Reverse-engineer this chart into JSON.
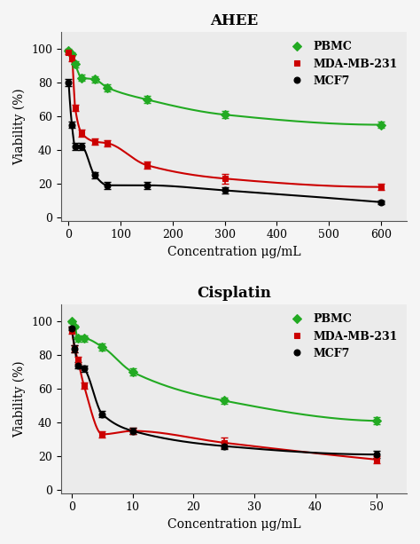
{
  "ahee": {
    "title": "AHEE",
    "xlabel": "Concentration μg/mL",
    "ylabel": "Viability (%)",
    "xlim": [
      -15,
      650
    ],
    "ylim": [
      -2,
      110
    ],
    "xticks": [
      0,
      100,
      200,
      300,
      400,
      500,
      600
    ],
    "yticks": [
      0,
      20,
      40,
      60,
      80,
      100
    ],
    "pbmc": {
      "x": [
        0,
        6.25,
        12.5,
        25,
        50,
        75,
        150,
        300,
        600
      ],
      "y": [
        99,
        97,
        91,
        83,
        82,
        77,
        70,
        61,
        55
      ],
      "yerr": [
        1,
        1,
        2,
        2,
        2,
        2,
        2,
        2,
        2
      ],
      "color": "#22aa22",
      "marker": "D",
      "label": "PBMC"
    },
    "mda": {
      "x": [
        0,
        6.25,
        12.5,
        25,
        50,
        75,
        150,
        300,
        600
      ],
      "y": [
        98,
        95,
        65,
        50,
        45,
        44,
        31,
        23,
        18
      ],
      "yerr": [
        1,
        2,
        2,
        2,
        2,
        2,
        2,
        3,
        2
      ],
      "color": "#cc0000",
      "marker": "s",
      "label": "MDA-MB-231"
    },
    "mcf7": {
      "x": [
        0,
        6.25,
        12.5,
        25,
        50,
        75,
        150,
        300,
        600
      ],
      "y": [
        80,
        55,
        42,
        42,
        25,
        19,
        19,
        16,
        9
      ],
      "yerr": [
        2,
        2,
        2,
        2,
        2,
        2,
        2,
        2,
        1
      ],
      "color": "#000000",
      "marker": "o",
      "label": "MCF7"
    }
  },
  "cisplatin": {
    "title": "Cisplatin",
    "xlabel": "Concentration μg/mL",
    "ylabel": "Viability (%)",
    "xlim": [
      -1.8,
      55
    ],
    "ylim": [
      -2,
      110
    ],
    "xticks": [
      0,
      10,
      20,
      30,
      40,
      50
    ],
    "yticks": [
      0,
      20,
      40,
      60,
      80,
      100
    ],
    "pbmc": {
      "x": [
        0,
        0.5,
        1,
        2,
        5,
        10,
        25,
        50
      ],
      "y": [
        100,
        97,
        90,
        90,
        85,
        70,
        53,
        41
      ],
      "yerr": [
        1,
        1,
        2,
        2,
        2,
        2,
        2,
        2
      ],
      "color": "#22aa22",
      "marker": "D",
      "label": "PBMC"
    },
    "mda": {
      "x": [
        0,
        0.5,
        1,
        2,
        5,
        10,
        25,
        50
      ],
      "y": [
        95,
        84,
        77,
        62,
        33,
        35,
        28,
        18
      ],
      "yerr": [
        2,
        2,
        2,
        2,
        2,
        2,
        3,
        2
      ],
      "color": "#cc0000",
      "marker": "s",
      "label": "MDA-MB-231"
    },
    "mcf7": {
      "x": [
        0,
        0.5,
        1,
        2,
        5,
        10,
        25,
        50
      ],
      "y": [
        96,
        84,
        74,
        72,
        45,
        35,
        26,
        21
      ],
      "yerr": [
        1,
        2,
        2,
        2,
        2,
        2,
        2,
        2
      ],
      "color": "#000000",
      "marker": "o",
      "label": "MCF7"
    }
  },
  "legend_fontsize": 9,
  "axis_fontsize": 10,
  "title_fontsize": 12,
  "tick_fontsize": 9,
  "linewidth": 1.5,
  "markersize": 5,
  "capsize": 3,
  "elinewidth": 1.2,
  "bg_color": "#f0f0f0"
}
